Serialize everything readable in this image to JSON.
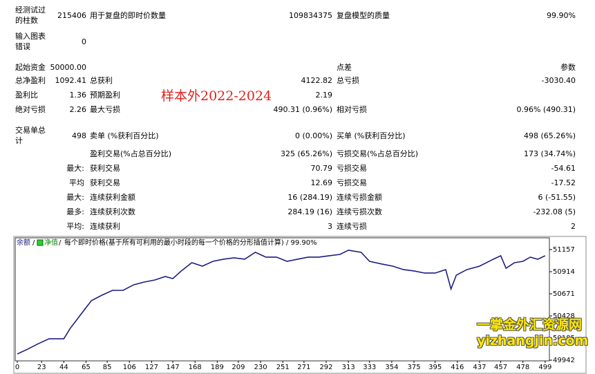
{
  "report": {
    "rows": [
      [
        "经测试过的柱数",
        "215406",
        "用于复盘的即时价数量",
        "109834375",
        "复盘模型的质量",
        "99.90%"
      ],
      [
        "输入图表错误",
        "0",
        null,
        null,
        null,
        null
      ],
      [
        "起始资金",
        "50000.00",
        null,
        null,
        "点差",
        "参数"
      ],
      [
        "总净盈利",
        "1092.41",
        "总获利",
        "4122.82",
        "总亏损",
        "-3030.40"
      ],
      [
        "盈利比",
        "1.36",
        "预期盈利",
        "2.19",
        null,
        null
      ],
      [
        "绝对亏损",
        "2.26",
        "最大亏损",
        "490.31 (0.96%)",
        "相对亏损",
        "0.96% (490.31)"
      ],
      [
        "交易单总计",
        "498",
        "卖单 (%获利百分比)",
        "0 (0.00%)",
        "买单 (%获利百分比)",
        "498 (65.26%)"
      ],
      [
        null,
        null,
        "盈利交易(%占总百分比)",
        "325 (65.26%)",
        "亏损交易(%占总百分比)",
        "173 (34.74%)"
      ],
      [
        "最大:",
        null,
        "获利交易",
        "70.79",
        "亏损交易",
        "-54.61"
      ],
      [
        "平均",
        null,
        "获利交易",
        "12.69",
        "亏损交易",
        "-17.52"
      ],
      [
        "最大:",
        null,
        "连续获利金额",
        "16 (284.19)",
        "连续亏损金额",
        "6 (-51.55)"
      ],
      [
        "最多:",
        null,
        "连续获利次数",
        "284.19 (16)",
        "连续亏损次数",
        "-232.08 (5)"
      ],
      [
        "平均:",
        null,
        "连续获利",
        "3",
        "连续亏损",
        "2"
      ]
    ]
  },
  "annotation": "样本外2022-2024",
  "watermark": {
    "title": "一掌金外汇资源网",
    "url": "yizhangjin.com"
  },
  "chart_data": {
    "type": "line",
    "subtitle": "每个即时价格(基于所有可利用的最小时段的每一个价格的分形插值计算) / 99.90%",
    "legend_labels": [
      "余额",
      "净值"
    ],
    "x": [
      0,
      10,
      20,
      30,
      44,
      50,
      60,
      65,
      70,
      80,
      90,
      100,
      110,
      120,
      130,
      140,
      147,
      155,
      165,
      175,
      185,
      195,
      205,
      215,
      225,
      235,
      245,
      255,
      265,
      275,
      285,
      295,
      305,
      313,
      325,
      333,
      345,
      355,
      365,
      375,
      385,
      395,
      405,
      410,
      415,
      425,
      437,
      450,
      457,
      462,
      470,
      478,
      485,
      492,
      499
    ],
    "series": [
      {
        "name": "余额",
        "color": "#1c1c84",
        "values": [
          50010,
          50064,
          50124,
          50177,
          50177,
          50291,
          50443,
          50519,
          50595,
          50656,
          50709,
          50709,
          50770,
          50800,
          50823,
          50861,
          50838,
          50922,
          51013,
          50975,
          51028,
          51051,
          51066,
          51051,
          51127,
          51074,
          51074,
          51028,
          51051,
          51074,
          51074,
          51089,
          51104,
          51150,
          51127,
          51028,
          50997,
          50975,
          50937,
          50922,
          50899,
          50899,
          50937,
          50724,
          50876,
          50937,
          50975,
          51051,
          51089,
          50952,
          51013,
          51028,
          51074,
          51051,
          51089
        ]
      }
    ],
    "xlim": [
      0,
      503
    ],
    "ylim": [
      49942,
      51233
    ],
    "xticks": [
      0,
      23,
      44,
      65,
      85,
      106,
      127,
      147,
      168,
      189,
      209,
      230,
      251,
      271,
      292,
      313,
      333,
      354,
      375,
      395,
      416,
      437,
      457,
      478,
      499
    ],
    "yticks": [
      49942,
      50185,
      50428,
      50671,
      50914,
      51157
    ],
    "grid": false
  }
}
